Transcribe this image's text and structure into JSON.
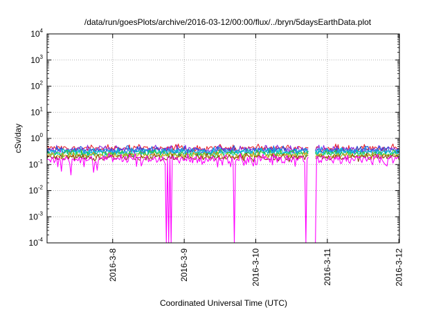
{
  "chart_data": {
    "type": "line",
    "title": "/data/run/goesPlots/archive/2016-03-12/00:00/flux/../bryn/5daysEarthData.plot",
    "xlabel": "Coordinated Universal Time (UTC)",
    "ylabel": "cSv/day",
    "y_scale": "log",
    "ylim": [
      0.0001,
      10000
    ],
    "xlim": [
      "2016-03-07 02:00",
      "2016-03-12 00:10"
    ],
    "grid": true,
    "y_ticks": [
      {
        "value": 0.0001,
        "base": "10",
        "exp": "-4"
      },
      {
        "value": 0.001,
        "base": "10",
        "exp": "-3"
      },
      {
        "value": 0.01,
        "base": "10",
        "exp": "-2"
      },
      {
        "value": 0.1,
        "base": "10",
        "exp": "-1"
      },
      {
        "value": 1,
        "base": "10",
        "exp": "0"
      },
      {
        "value": 10,
        "base": "10",
        "exp": "1"
      },
      {
        "value": 100,
        "base": "10",
        "exp": "2"
      },
      {
        "value": 1000,
        "base": "10",
        "exp": "3"
      },
      {
        "value": 10000,
        "base": "10",
        "exp": "4"
      }
    ],
    "x_ticks": [
      {
        "date": "2016-03-08",
        "label": "2016-3-8"
      },
      {
        "date": "2016-03-09",
        "label": "2016-3-9"
      },
      {
        "date": "2016-03-10",
        "label": "2016-3-10"
      },
      {
        "date": "2016-03-11",
        "label": "2016-3-11"
      },
      {
        "date": "2016-03-12",
        "label": "2016-3-12"
      }
    ],
    "data_gaps": [
      {
        "start": "2016-03-10 18:00",
        "end": "2016-03-10 19:40"
      }
    ],
    "series": [
      {
        "color": "#e8202a",
        "level": 0.42,
        "spread": 0.09
      },
      {
        "color": "#8a2be2",
        "level": 0.38,
        "spread": 0.08
      },
      {
        "color": "#1e5ad8",
        "level": 0.35,
        "spread": 0.08
      },
      {
        "color": "#1fa0e8",
        "level": 0.32,
        "spread": 0.07
      },
      {
        "color": "#00c8c8",
        "level": 0.29,
        "spread": 0.06
      },
      {
        "color": "#33cc33",
        "level": 0.26,
        "spread": 0.05
      },
      {
        "color": "#d4a017",
        "level": 0.22,
        "spread": 0.04
      },
      {
        "color": "#8b4513",
        "level": 0.19,
        "spread": 0.04
      },
      {
        "color": "#ff00ff",
        "level": 0.16,
        "spread": 0.05,
        "dropouts": [
          {
            "date": "2016-03-07 06:40",
            "value": 0.055
          },
          {
            "date": "2016-03-07 10:00",
            "value": 0.04
          },
          {
            "date": "2016-03-07 17:30",
            "value": 0.05
          },
          {
            "date": "2016-03-07 18:40",
            "value": 0.06
          },
          {
            "date": "2016-03-08 18:10",
            "value": 0.0001
          },
          {
            "date": "2016-03-08 18:50",
            "value": 0.0001
          },
          {
            "date": "2016-03-08 19:30",
            "value": 0.0001
          },
          {
            "date": "2016-03-09 16:50",
            "value": 0.0001
          },
          {
            "date": "2016-03-10 16:40",
            "value": 0.0001
          },
          {
            "date": "2016-03-10 19:50",
            "value": 0.0001
          }
        ]
      }
    ]
  }
}
